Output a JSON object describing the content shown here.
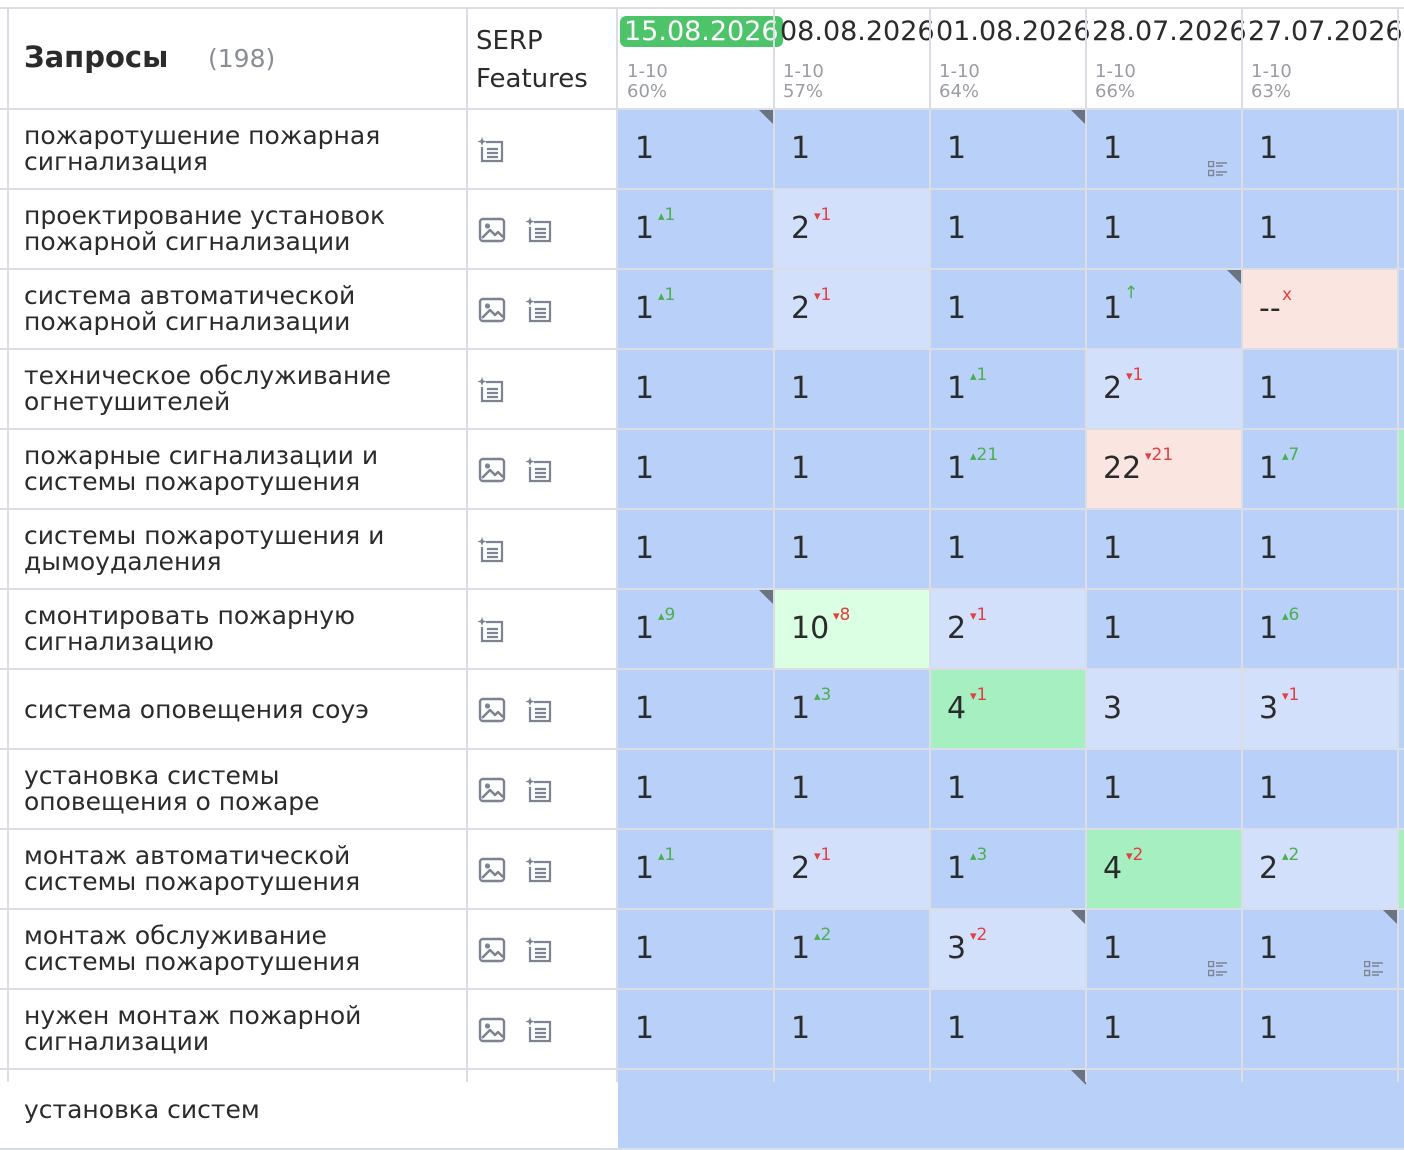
{
  "header": {
    "title": "Запросы",
    "count": "(198)",
    "serp_line1": "SERP",
    "serp_line2": "Features"
  },
  "dates": [
    {
      "date": "15.08.2026",
      "range": "1-10",
      "pct": "60%",
      "active": true
    },
    {
      "date": "08.08.2026",
      "range": "1-10",
      "pct": "57%",
      "active": false
    },
    {
      "date": "01.08.2026",
      "range": "1-10",
      "pct": "64%",
      "active": false
    },
    {
      "date": "28.07.2026",
      "range": "1-10",
      "pct": "66%",
      "active": false
    },
    {
      "date": "27.07.2026",
      "range": "1-10",
      "pct": "63%",
      "active": false
    }
  ],
  "colors": {
    "top": "#b9d0f9",
    "mid": "#d3e0fc",
    "green": "#a6efc1",
    "lightgreen": "#daffe3",
    "pink": "#fbe5e1",
    "up": "#4caf50",
    "down": "#e04040"
  },
  "rows": [
    {
      "query": [
        "пожаротушение пожарная",
        "сигнализация"
      ],
      "features": [
        "pin-icon"
      ],
      "cells": [
        {
          "pos": "1",
          "ch": "",
          "dir": "",
          "bg": "top",
          "corner": true,
          "list": false
        },
        {
          "pos": "1",
          "ch": "",
          "dir": "",
          "bg": "top",
          "corner": false,
          "list": false
        },
        {
          "pos": "1",
          "ch": "",
          "dir": "",
          "bg": "top",
          "corner": true,
          "list": false
        },
        {
          "pos": "1",
          "ch": "",
          "dir": "",
          "bg": "top",
          "corner": false,
          "list": true
        },
        {
          "pos": "1",
          "ch": "",
          "dir": "",
          "bg": "top",
          "corner": false,
          "list": false
        }
      ],
      "extra": "top"
    },
    {
      "query": [
        "проектирование установок",
        "пожарной сигнализации"
      ],
      "features": [
        "image-icon",
        "pin-icon"
      ],
      "cells": [
        {
          "pos": "1",
          "ch": "1",
          "dir": "up",
          "bg": "top",
          "corner": false,
          "list": false
        },
        {
          "pos": "2",
          "ch": "1",
          "dir": "down",
          "bg": "mid",
          "corner": false,
          "list": false
        },
        {
          "pos": "1",
          "ch": "",
          "dir": "",
          "bg": "top",
          "corner": false,
          "list": false
        },
        {
          "pos": "1",
          "ch": "",
          "dir": "",
          "bg": "top",
          "corner": false,
          "list": false
        },
        {
          "pos": "1",
          "ch": "",
          "dir": "",
          "bg": "top",
          "corner": false,
          "list": false
        }
      ],
      "extra": "top"
    },
    {
      "query": [
        "система автоматической",
        "пожарной сигнализации"
      ],
      "features": [
        "image-icon",
        "pin-icon"
      ],
      "cells": [
        {
          "pos": "1",
          "ch": "1",
          "dir": "up",
          "bg": "top",
          "corner": false,
          "list": false
        },
        {
          "pos": "2",
          "ch": "1",
          "dir": "down",
          "bg": "mid",
          "corner": false,
          "list": false
        },
        {
          "pos": "1",
          "ch": "",
          "dir": "",
          "bg": "top",
          "corner": false,
          "list": false
        },
        {
          "pos": "1",
          "ch": "",
          "dir": "arrow",
          "bg": "top",
          "corner": true,
          "list": false
        },
        {
          "pos": "--",
          "ch": "x",
          "dir": "x",
          "bg": "pink",
          "corner": false,
          "list": false
        }
      ],
      "extra": "top"
    },
    {
      "query": [
        "техническое обслуживание",
        "огнетушителей"
      ],
      "features": [
        "pin-icon"
      ],
      "cells": [
        {
          "pos": "1",
          "ch": "",
          "dir": "",
          "bg": "top",
          "corner": false,
          "list": false
        },
        {
          "pos": "1",
          "ch": "",
          "dir": "",
          "bg": "top",
          "corner": false,
          "list": false
        },
        {
          "pos": "1",
          "ch": "1",
          "dir": "up",
          "bg": "top",
          "corner": false,
          "list": false
        },
        {
          "pos": "2",
          "ch": "1",
          "dir": "down",
          "bg": "mid",
          "corner": false,
          "list": false
        },
        {
          "pos": "1",
          "ch": "",
          "dir": "",
          "bg": "top",
          "corner": false,
          "list": false
        }
      ],
      "extra": "top"
    },
    {
      "query": [
        "пожарные сигнализации и",
        "системы пожаротушения"
      ],
      "features": [
        "image-icon",
        "pin-icon"
      ],
      "cells": [
        {
          "pos": "1",
          "ch": "",
          "dir": "",
          "bg": "top",
          "corner": false,
          "list": false
        },
        {
          "pos": "1",
          "ch": "",
          "dir": "",
          "bg": "top",
          "corner": false,
          "list": false
        },
        {
          "pos": "1",
          "ch": "21",
          "dir": "up",
          "bg": "top",
          "corner": false,
          "list": false
        },
        {
          "pos": "22",
          "ch": "21",
          "dir": "down",
          "bg": "pink",
          "corner": false,
          "list": false
        },
        {
          "pos": "1",
          "ch": "7",
          "dir": "up",
          "bg": "top",
          "corner": false,
          "list": false
        }
      ],
      "extra": "green"
    },
    {
      "query": [
        "системы пожаротушения и",
        "дымоудаления"
      ],
      "features": [
        "pin-icon"
      ],
      "cells": [
        {
          "pos": "1",
          "ch": "",
          "dir": "",
          "bg": "top",
          "corner": false,
          "list": false
        },
        {
          "pos": "1",
          "ch": "",
          "dir": "",
          "bg": "top",
          "corner": false,
          "list": false
        },
        {
          "pos": "1",
          "ch": "",
          "dir": "",
          "bg": "top",
          "corner": false,
          "list": false
        },
        {
          "pos": "1",
          "ch": "",
          "dir": "",
          "bg": "top",
          "corner": false,
          "list": false
        },
        {
          "pos": "1",
          "ch": "",
          "dir": "",
          "bg": "top",
          "corner": false,
          "list": false
        }
      ],
      "extra": "top"
    },
    {
      "query": [
        "смонтировать пожарную",
        "сигнализацию"
      ],
      "features": [
        "pin-icon"
      ],
      "cells": [
        {
          "pos": "1",
          "ch": "9",
          "dir": "up",
          "bg": "top",
          "corner": true,
          "list": false
        },
        {
          "pos": "10",
          "ch": "8",
          "dir": "down",
          "bg": "lightgreen",
          "corner": false,
          "list": false
        },
        {
          "pos": "2",
          "ch": "1",
          "dir": "down",
          "bg": "mid",
          "corner": false,
          "list": false
        },
        {
          "pos": "1",
          "ch": "",
          "dir": "",
          "bg": "top",
          "corner": false,
          "list": false
        },
        {
          "pos": "1",
          "ch": "6",
          "dir": "up",
          "bg": "top",
          "corner": false,
          "list": false
        }
      ],
      "extra": "top"
    },
    {
      "query": [
        "система оповещения соуэ"
      ],
      "features": [
        "image-icon",
        "pin-icon"
      ],
      "cells": [
        {
          "pos": "1",
          "ch": "",
          "dir": "",
          "bg": "top",
          "corner": false,
          "list": false
        },
        {
          "pos": "1",
          "ch": "3",
          "dir": "up",
          "bg": "top",
          "corner": false,
          "list": false
        },
        {
          "pos": "4",
          "ch": "1",
          "dir": "down",
          "bg": "green",
          "corner": false,
          "list": false
        },
        {
          "pos": "3",
          "ch": "",
          "dir": "",
          "bg": "mid",
          "corner": false,
          "list": false
        },
        {
          "pos": "3",
          "ch": "1",
          "dir": "down",
          "bg": "mid",
          "corner": false,
          "list": false
        }
      ],
      "extra": "top"
    },
    {
      "query": [
        "установка системы",
        "оповещения о пожаре"
      ],
      "features": [
        "image-icon",
        "pin-icon"
      ],
      "cells": [
        {
          "pos": "1",
          "ch": "",
          "dir": "",
          "bg": "top",
          "corner": false,
          "list": false
        },
        {
          "pos": "1",
          "ch": "",
          "dir": "",
          "bg": "top",
          "corner": false,
          "list": false
        },
        {
          "pos": "1",
          "ch": "",
          "dir": "",
          "bg": "top",
          "corner": false,
          "list": false
        },
        {
          "pos": "1",
          "ch": "",
          "dir": "",
          "bg": "top",
          "corner": false,
          "list": false
        },
        {
          "pos": "1",
          "ch": "",
          "dir": "",
          "bg": "top",
          "corner": false,
          "list": false
        }
      ],
      "extra": "top"
    },
    {
      "query": [
        "монтаж автоматической",
        "системы пожаротушения"
      ],
      "features": [
        "image-icon",
        "pin-icon"
      ],
      "cells": [
        {
          "pos": "1",
          "ch": "1",
          "dir": "up",
          "bg": "top",
          "corner": false,
          "list": false
        },
        {
          "pos": "2",
          "ch": "1",
          "dir": "down",
          "bg": "mid",
          "corner": false,
          "list": false
        },
        {
          "pos": "1",
          "ch": "3",
          "dir": "up",
          "bg": "top",
          "corner": false,
          "list": false
        },
        {
          "pos": "4",
          "ch": "2",
          "dir": "down",
          "bg": "green",
          "corner": false,
          "list": false
        },
        {
          "pos": "2",
          "ch": "2",
          "dir": "up",
          "bg": "mid",
          "corner": false,
          "list": false
        }
      ],
      "extra": "green"
    },
    {
      "query": [
        "монтаж обслуживание",
        "системы пожаротушения"
      ],
      "features": [
        "image-icon",
        "pin-icon"
      ],
      "cells": [
        {
          "pos": "1",
          "ch": "",
          "dir": "",
          "bg": "top",
          "corner": false,
          "list": false
        },
        {
          "pos": "1",
          "ch": "2",
          "dir": "up",
          "bg": "top",
          "corner": false,
          "list": false
        },
        {
          "pos": "3",
          "ch": "2",
          "dir": "down",
          "bg": "mid",
          "corner": true,
          "list": false
        },
        {
          "pos": "1",
          "ch": "",
          "dir": "",
          "bg": "top",
          "corner": false,
          "list": true
        },
        {
          "pos": "1",
          "ch": "",
          "dir": "",
          "bg": "top",
          "corner": true,
          "list": true
        }
      ],
      "extra": "top"
    },
    {
      "query": [
        "нужен монтаж пожарной",
        "сигнализации"
      ],
      "features": [
        "image-icon",
        "pin-icon"
      ],
      "cells": [
        {
          "pos": "1",
          "ch": "",
          "dir": "",
          "bg": "top",
          "corner": false,
          "list": false
        },
        {
          "pos": "1",
          "ch": "",
          "dir": "",
          "bg": "top",
          "corner": false,
          "list": false
        },
        {
          "pos": "1",
          "ch": "",
          "dir": "",
          "bg": "top",
          "corner": false,
          "list": false
        },
        {
          "pos": "1",
          "ch": "",
          "dir": "",
          "bg": "top",
          "corner": false,
          "list": false
        },
        {
          "pos": "1",
          "ch": "",
          "dir": "",
          "bg": "top",
          "corner": false,
          "list": false
        }
      ],
      "extra": "top"
    },
    {
      "query": [
        "установка систем"
      ],
      "features": [],
      "cells": [
        {
          "pos": "",
          "ch": "",
          "dir": "",
          "bg": "top",
          "corner": false,
          "list": false
        },
        {
          "pos": "",
          "ch": "",
          "dir": "",
          "bg": "top",
          "corner": false,
          "list": false
        },
        {
          "pos": "",
          "ch": "",
          "dir": "",
          "bg": "top",
          "corner": true,
          "list": false
        },
        {
          "pos": "",
          "ch": "",
          "dir": "",
          "bg": "top",
          "corner": false,
          "list": false
        },
        {
          "pos": "",
          "ch": "",
          "dir": "",
          "bg": "top",
          "corner": false,
          "list": false
        }
      ],
      "extra": "top"
    }
  ]
}
